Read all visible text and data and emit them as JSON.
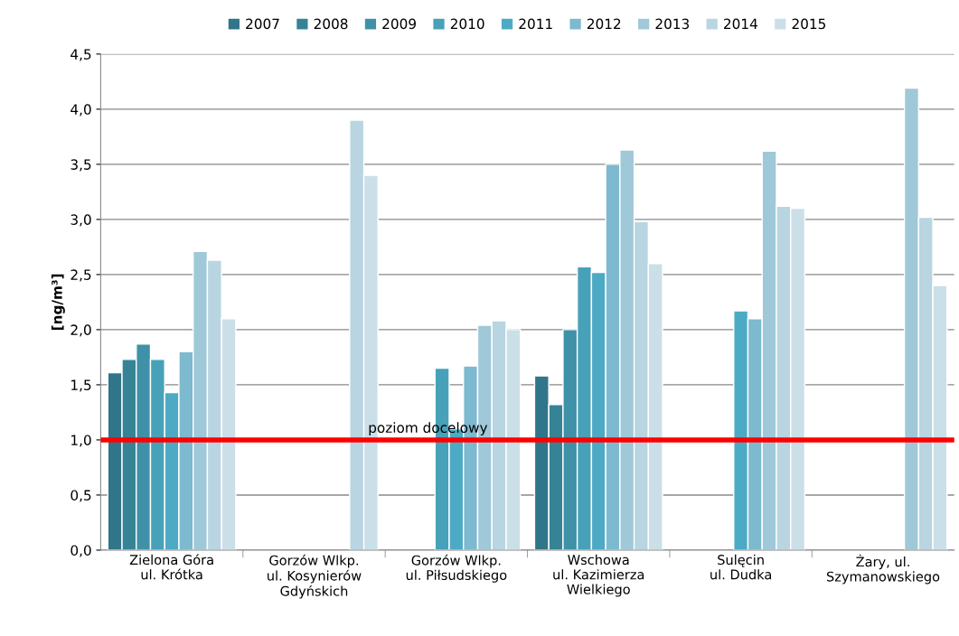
{
  "chart_data": {
    "type": "bar",
    "ylabel": "[ng/m³]",
    "categories": [
      "Zielona Góra\nul. Krótka",
      "Gorzów Wlkp.\nul. Kosynierów\nGdyńskich",
      "Gorzów Wlkp.\nul. Piłsudskiego",
      "Wschowa\nul. Kazimierza\nWielkiego",
      "Sulęcin\nul. Dudka",
      "Żary, ul.\nSzymanowskiego"
    ],
    "series": [
      {
        "name": "2007",
        "color": "#31758a",
        "values": [
          1.61,
          null,
          null,
          1.58,
          null,
          null
        ]
      },
      {
        "name": "2008",
        "color": "#378396",
        "values": [
          1.73,
          null,
          null,
          1.32,
          null,
          null
        ]
      },
      {
        "name": "2009",
        "color": "#3f91a8",
        "values": [
          1.87,
          null,
          null,
          2.0,
          null,
          null
        ]
      },
      {
        "name": "2010",
        "color": "#47a1b8",
        "values": [
          1.73,
          null,
          1.65,
          2.57,
          null,
          null
        ]
      },
      {
        "name": "2011",
        "color": "#4daac4",
        "values": [
          1.43,
          null,
          1.1,
          2.52,
          2.17,
          null
        ]
      },
      {
        "name": "2012",
        "color": "#7db9cf",
        "values": [
          1.8,
          null,
          1.67,
          3.5,
          2.1,
          null
        ]
      },
      {
        "name": "2013",
        "color": "#9fc8d8",
        "values": [
          2.71,
          null,
          2.04,
          3.63,
          3.62,
          4.19
        ]
      },
      {
        "name": "2014",
        "color": "#b8d5e1",
        "values": [
          2.63,
          3.9,
          2.08,
          2.98,
          3.12,
          3.02
        ]
      },
      {
        "name": "2015",
        "color": "#cbdfe8",
        "values": [
          2.1,
          3.4,
          2.0,
          2.6,
          3.1,
          2.4
        ]
      }
    ],
    "ylim": [
      0,
      4.5
    ],
    "yticks": [
      {
        "value": 0,
        "label": "0,0"
      },
      {
        "value": 0.5,
        "label": "0,5"
      },
      {
        "value": 1,
        "label": "1,0"
      },
      {
        "value": 1.5,
        "label": "1,5"
      },
      {
        "value": 2,
        "label": "2,0"
      },
      {
        "value": 2.5,
        "label": "2,5"
      },
      {
        "value": 3,
        "label": "3,0"
      },
      {
        "value": 3.5,
        "label": "3,5"
      },
      {
        "value": 4,
        "label": "4,0"
      },
      {
        "value": 4.5,
        "label": "4,5"
      }
    ],
    "ref_lines": [
      {
        "axis": "y",
        "value": 1.0,
        "label": "poziom docelowy",
        "color": "#ff0000"
      }
    ],
    "grid": "y",
    "legend": "top"
  }
}
